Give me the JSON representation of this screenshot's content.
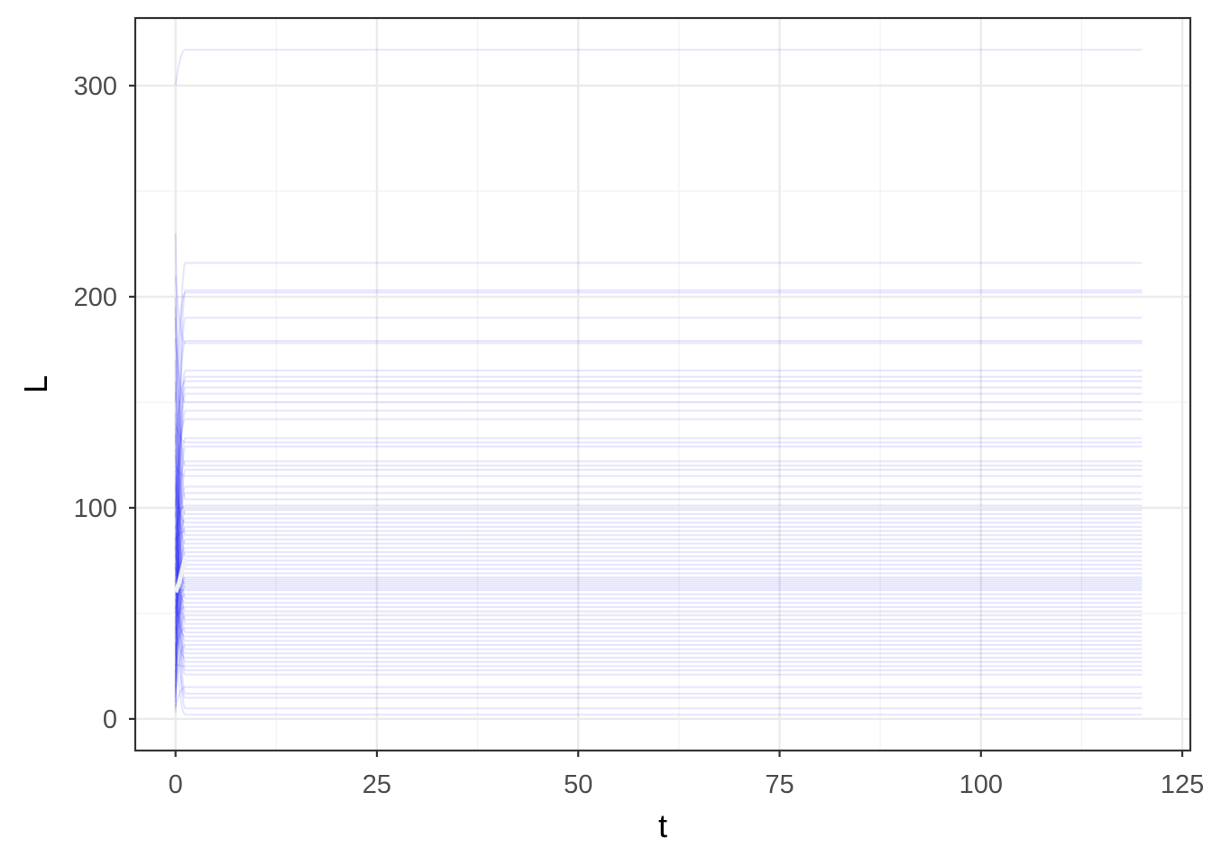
{
  "chart_data": {
    "type": "line",
    "title": "",
    "xlabel": "t",
    "ylabel": "L",
    "xlim": [
      -5,
      126
    ],
    "ylim": [
      -15,
      332
    ],
    "x_ticks": [
      0,
      25,
      50,
      75,
      100,
      125
    ],
    "x_tick_labels": [
      "0",
      "25",
      "50",
      "75",
      "100",
      "125"
    ],
    "y_ticks": [
      0,
      100,
      200,
      300
    ],
    "y_tick_labels": [
      "0",
      "100",
      "200",
      "300"
    ],
    "grid": true,
    "legend": "none",
    "colors": {
      "series_line": "#0000ff",
      "mean_line": "#f0f0f0",
      "grid_major": "#ebebeb",
      "grid_minor": "#f2f2f2",
      "panel_border": "#333333"
    },
    "series_opacity": 0.1,
    "transient_end_t": 1.2,
    "plateau_end_t": 120,
    "plateau_levels": [
      317,
      216,
      203,
      202,
      190,
      179,
      178,
      165,
      162,
      160,
      157,
      154,
      150,
      146,
      142,
      133,
      131,
      129,
      122,
      120,
      118,
      115,
      110,
      107,
      104,
      101,
      99,
      97,
      95,
      93,
      91,
      89,
      87,
      85,
      83,
      81,
      79,
      77,
      75,
      73,
      71,
      69,
      67,
      66,
      65,
      64,
      63,
      62,
      61,
      59,
      57,
      55,
      53,
      51,
      49,
      47,
      45,
      43,
      41,
      39,
      37,
      35,
      33,
      31,
      29,
      27,
      25,
      23,
      21,
      15,
      12,
      10,
      5,
      2
    ],
    "start_levels": [
      300,
      80,
      12,
      150,
      40,
      95,
      210,
      60,
      5,
      130,
      70,
      25,
      180,
      55,
      100,
      35,
      140,
      8,
      75,
      190,
      20,
      120,
      65,
      45,
      230,
      90,
      15,
      160,
      50,
      110,
      30,
      85,
      200,
      10,
      125,
      58,
      42,
      170,
      68,
      3,
      145,
      78,
      28,
      115,
      52,
      92,
      18,
      135,
      62,
      38,
      155,
      72,
      48,
      105,
      22,
      88,
      195,
      33,
      118,
      57,
      82,
      14,
      128,
      66,
      44,
      98,
      26,
      138,
      74,
      6,
      112,
      54,
      86,
      36
    ],
    "mean_line": {
      "t": [
        0,
        0.2,
        0.4,
        0.6,
        0.8,
        1.0,
        1.2
      ],
      "L": [
        60,
        62,
        64,
        67,
        70,
        73,
        76
      ]
    }
  }
}
